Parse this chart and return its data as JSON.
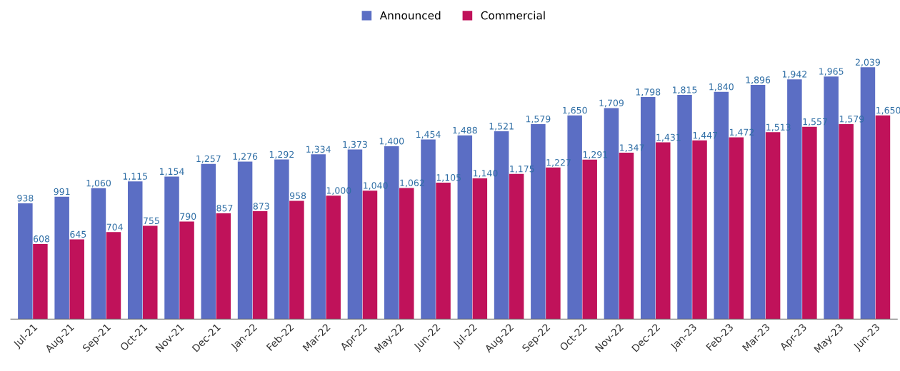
{
  "chart_data": {
    "type": "bar",
    "categories": [
      "Jul-21",
      "Aug-21",
      "Sep-21",
      "Oct-21",
      "Nov-21",
      "Dec-21",
      "Jan-22",
      "Feb-22",
      "Mar-22",
      "Apr-22",
      "May-22",
      "Jun-22",
      "Jul-22",
      "Aug-22",
      "Sep-22",
      "Oct-22",
      "Nov-22",
      "Dec-22",
      "Jan-23",
      "Feb-23",
      "Mar-23",
      "Apr-23",
      "May-23",
      "Jun-23"
    ],
    "series": [
      {
        "name": "Announced",
        "color": "#5b6ec4",
        "values": [
          938,
          991,
          1060,
          1115,
          1154,
          1257,
          1276,
          1292,
          1334,
          1373,
          1400,
          1454,
          1488,
          1521,
          1579,
          1650,
          1709,
          1798,
          1815,
          1840,
          1896,
          1942,
          1965,
          2039
        ],
        "value_labels": [
          "938",
          "991",
          "1,060",
          "1,115",
          "1,154",
          "1,257",
          "1,276",
          "1,292",
          "1,334",
          "1,373",
          "1,400",
          "1,454",
          "1,488",
          "1,521",
          "1,579",
          "1,650",
          "1,709",
          "1,798",
          "1,815",
          "1,840",
          "1,896",
          "1,942",
          "1,965",
          "2,039"
        ]
      },
      {
        "name": "Commercial",
        "color": "#c0125a",
        "values": [
          608,
          645,
          704,
          755,
          790,
          857,
          873,
          958,
          1000,
          1040,
          1062,
          1105,
          1140,
          1175,
          1227,
          1291,
          1347,
          1431,
          1447,
          1472,
          1513,
          1557,
          1579,
          1650
        ],
        "value_labels": [
          "608",
          "645",
          "704",
          "755",
          "790",
          "857",
          "873",
          "958",
          "1,000",
          "1,040",
          "1,062",
          "1,105",
          "1,140",
          "1,175",
          "1,227",
          "1,291",
          "1,347",
          "1,431",
          "1,447",
          "1,472",
          "1,513",
          "1,557",
          "1,579",
          "1,650"
        ]
      }
    ],
    "legend": "top",
    "grid": false
  }
}
